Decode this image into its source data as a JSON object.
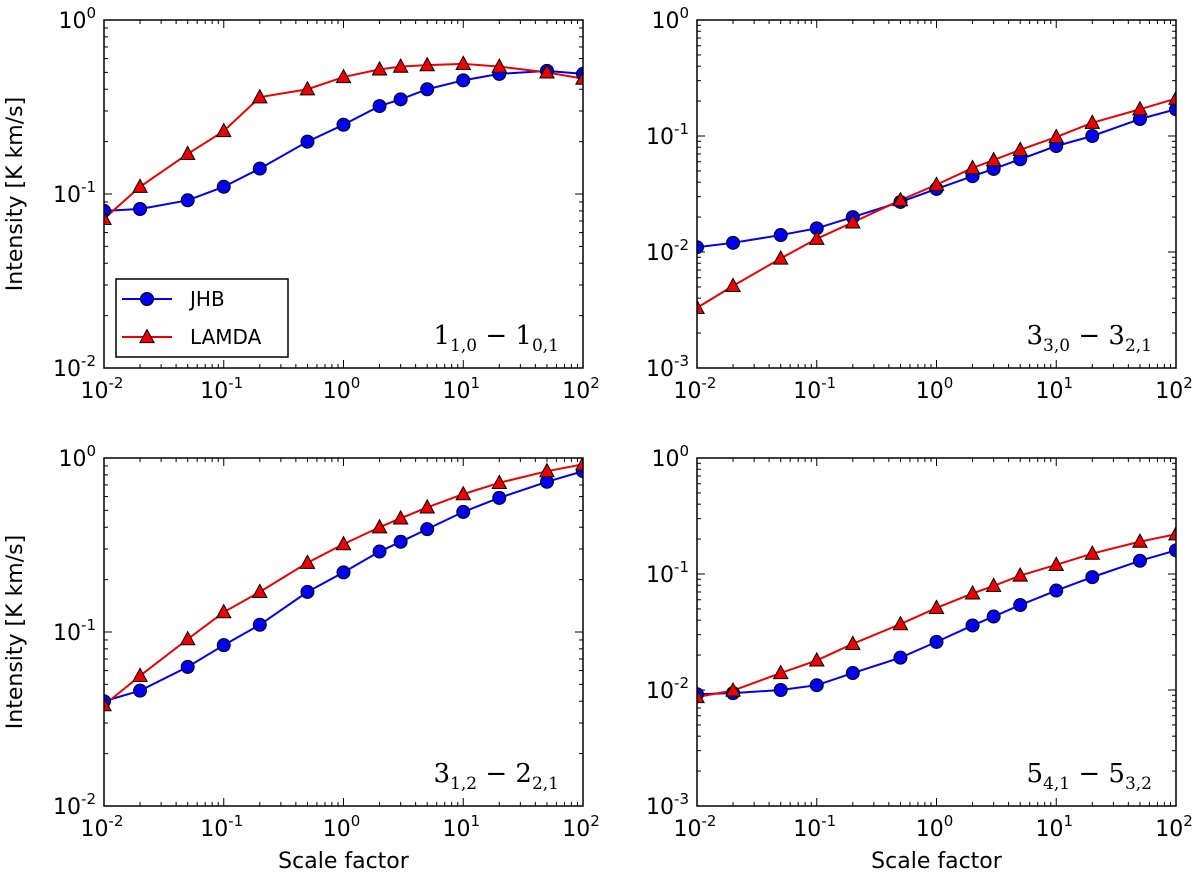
{
  "chart_data": [
    {
      "type": "line",
      "id": "p1",
      "transition": {
        "a": "1",
        "a_sub": "1,0",
        "b": "1",
        "b_sub": "0,1"
      },
      "xlabel": "",
      "ylabel": "Intensity [K km/s]",
      "xscale": "log",
      "yscale": "log",
      "xlim": [
        0.01,
        100
      ],
      "ylim": [
        0.01,
        1
      ],
      "x_ticks": [
        {
          "base": "10",
          "exp": "-2"
        },
        {
          "base": "10",
          "exp": "-1"
        },
        {
          "base": "10",
          "exp": "0"
        },
        {
          "base": "10",
          "exp": "1"
        },
        {
          "base": "10",
          "exp": "2"
        }
      ],
      "y_ticks": [
        {
          "base": "10",
          "exp": "-2"
        },
        {
          "base": "10",
          "exp": "-1"
        },
        {
          "base": "10",
          "exp": "0"
        }
      ],
      "legend": {
        "placement": "lower-left",
        "entries": [
          "JHB",
          "LAMDA"
        ]
      },
      "x": [
        0.01,
        0.02,
        0.05,
        0.1,
        0.2,
        0.5,
        1,
        2,
        3,
        5,
        10,
        20,
        50,
        100
      ],
      "series": [
        {
          "name": "JHB",
          "color": "#0000ee",
          "marker": "circle",
          "values": [
            0.08,
            0.082,
            0.092,
            0.11,
            0.14,
            0.2,
            0.25,
            0.32,
            0.35,
            0.4,
            0.45,
            0.49,
            0.51,
            0.49
          ]
        },
        {
          "name": "LAMDA",
          "color": "#ee0000",
          "marker": "triangle",
          "values": [
            0.072,
            0.11,
            0.17,
            0.23,
            0.36,
            0.4,
            0.47,
            0.52,
            0.54,
            0.55,
            0.56,
            0.54,
            0.5,
            0.46
          ]
        }
      ]
    },
    {
      "type": "line",
      "id": "p2",
      "transition": {
        "a": "3",
        "a_sub": "3,0",
        "b": "3",
        "b_sub": "2,1"
      },
      "xlabel": "",
      "ylabel": "",
      "xscale": "log",
      "yscale": "log",
      "xlim": [
        0.01,
        100
      ],
      "ylim": [
        0.001,
        1
      ],
      "x_ticks": [
        {
          "base": "10",
          "exp": "-2"
        },
        {
          "base": "10",
          "exp": "-1"
        },
        {
          "base": "10",
          "exp": "0"
        },
        {
          "base": "10",
          "exp": "1"
        },
        {
          "base": "10",
          "exp": "2"
        }
      ],
      "y_ticks": [
        {
          "base": "10",
          "exp": "-3"
        },
        {
          "base": "10",
          "exp": "-2"
        },
        {
          "base": "10",
          "exp": "-1"
        },
        {
          "base": "10",
          "exp": "0"
        }
      ],
      "x": [
        0.01,
        0.02,
        0.05,
        0.1,
        0.2,
        0.5,
        1,
        2,
        3,
        5,
        10,
        20,
        50,
        100
      ],
      "series": [
        {
          "name": "JHB",
          "color": "#0000ee",
          "marker": "circle",
          "values": [
            0.011,
            0.012,
            0.014,
            0.016,
            0.02,
            0.027,
            0.035,
            0.045,
            0.052,
            0.063,
            0.082,
            0.1,
            0.14,
            0.17
          ]
        },
        {
          "name": "LAMDA",
          "color": "#ee0000",
          "marker": "triangle",
          "values": [
            0.0033,
            0.0051,
            0.0088,
            0.013,
            0.018,
            0.028,
            0.038,
            0.053,
            0.062,
            0.076,
            0.098,
            0.13,
            0.17,
            0.21
          ]
        }
      ]
    },
    {
      "type": "line",
      "id": "p3",
      "transition": {
        "a": "3",
        "a_sub": "1,2",
        "b": "2",
        "b_sub": "2,1"
      },
      "xlabel": "Scale factor",
      "ylabel": "Intensity [K km/s]",
      "xscale": "log",
      "yscale": "log",
      "xlim": [
        0.01,
        100
      ],
      "ylim": [
        0.01,
        1
      ],
      "x_ticks": [
        {
          "base": "10",
          "exp": "-2"
        },
        {
          "base": "10",
          "exp": "-1"
        },
        {
          "base": "10",
          "exp": "0"
        },
        {
          "base": "10",
          "exp": "1"
        },
        {
          "base": "10",
          "exp": "2"
        }
      ],
      "y_ticks": [
        {
          "base": "10",
          "exp": "-2"
        },
        {
          "base": "10",
          "exp": "-1"
        },
        {
          "base": "10",
          "exp": "0"
        }
      ],
      "x": [
        0.01,
        0.02,
        0.05,
        0.1,
        0.2,
        0.5,
        1,
        2,
        3,
        5,
        10,
        20,
        50,
        100
      ],
      "series": [
        {
          "name": "JHB",
          "color": "#0000ee",
          "marker": "circle",
          "values": [
            0.04,
            0.046,
            0.063,
            0.084,
            0.11,
            0.17,
            0.22,
            0.29,
            0.33,
            0.39,
            0.49,
            0.59,
            0.73,
            0.84
          ]
        },
        {
          "name": "LAMDA",
          "color": "#ee0000",
          "marker": "triangle",
          "values": [
            0.038,
            0.056,
            0.091,
            0.13,
            0.17,
            0.25,
            0.32,
            0.4,
            0.45,
            0.52,
            0.62,
            0.72,
            0.84,
            0.92
          ]
        }
      ]
    },
    {
      "type": "line",
      "id": "p4",
      "transition": {
        "a": "5",
        "a_sub": "4,1",
        "b": "5",
        "b_sub": "3,2"
      },
      "xlabel": "Scale factor",
      "ylabel": "",
      "xscale": "log",
      "yscale": "log",
      "xlim": [
        0.01,
        100
      ],
      "ylim": [
        0.001,
        1
      ],
      "x_ticks": [
        {
          "base": "10",
          "exp": "-2"
        },
        {
          "base": "10",
          "exp": "-1"
        },
        {
          "base": "10",
          "exp": "0"
        },
        {
          "base": "10",
          "exp": "1"
        },
        {
          "base": "10",
          "exp": "2"
        }
      ],
      "y_ticks": [
        {
          "base": "10",
          "exp": "-3"
        },
        {
          "base": "10",
          "exp": "-2"
        },
        {
          "base": "10",
          "exp": "-1"
        },
        {
          "base": "10",
          "exp": "0"
        }
      ],
      "x": [
        0.01,
        0.02,
        0.05,
        0.1,
        0.2,
        0.5,
        1,
        2,
        3,
        5,
        10,
        20,
        50,
        100
      ],
      "series": [
        {
          "name": "JHB",
          "color": "#0000ee",
          "marker": "circle",
          "values": [
            0.0092,
            0.0094,
            0.01,
            0.011,
            0.014,
            0.019,
            0.026,
            0.036,
            0.043,
            0.054,
            0.072,
            0.094,
            0.13,
            0.16
          ]
        },
        {
          "name": "LAMDA",
          "color": "#ee0000",
          "marker": "triangle",
          "values": [
            0.0087,
            0.0099,
            0.014,
            0.018,
            0.025,
            0.037,
            0.051,
            0.068,
            0.079,
            0.097,
            0.12,
            0.15,
            0.19,
            0.22
          ]
        }
      ]
    }
  ]
}
